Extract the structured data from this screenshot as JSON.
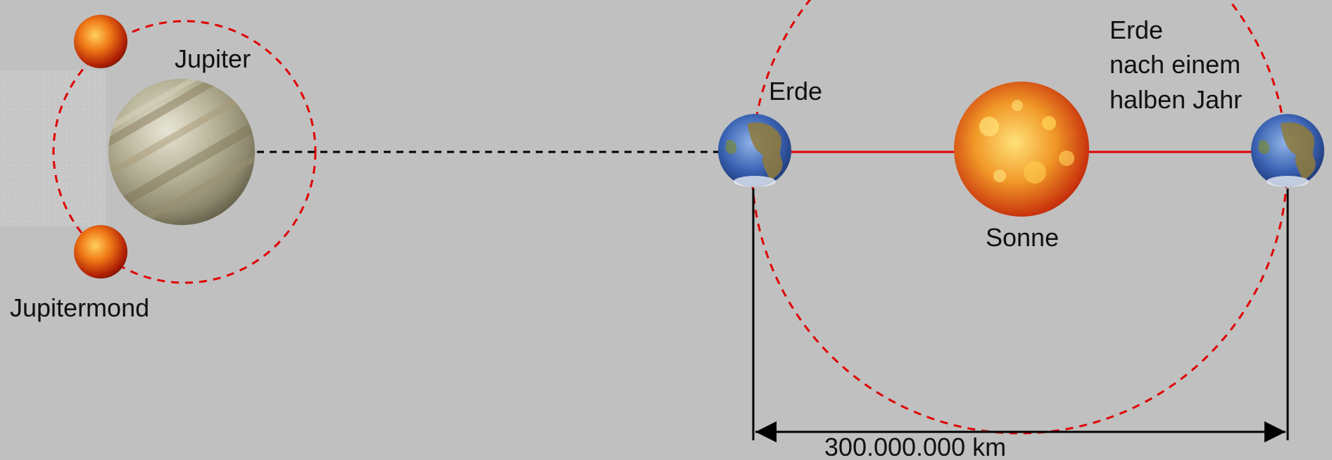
{
  "labels": {
    "jupiter": "Jupiter",
    "jupitermond": "Jupitermond",
    "erde": "Erde",
    "erde_later_1": "Erde",
    "erde_later_2": "nach einem",
    "erde_later_3": "halben Jahr",
    "sonne": "Sonne",
    "distance": "300.000.000 km"
  },
  "colors": {
    "background": "#c0c0c0",
    "orbit": "#e00000",
    "sun_line": "#e00000",
    "dashed_line": "#000000",
    "measure_line": "#000000",
    "text": "#111111"
  }
}
